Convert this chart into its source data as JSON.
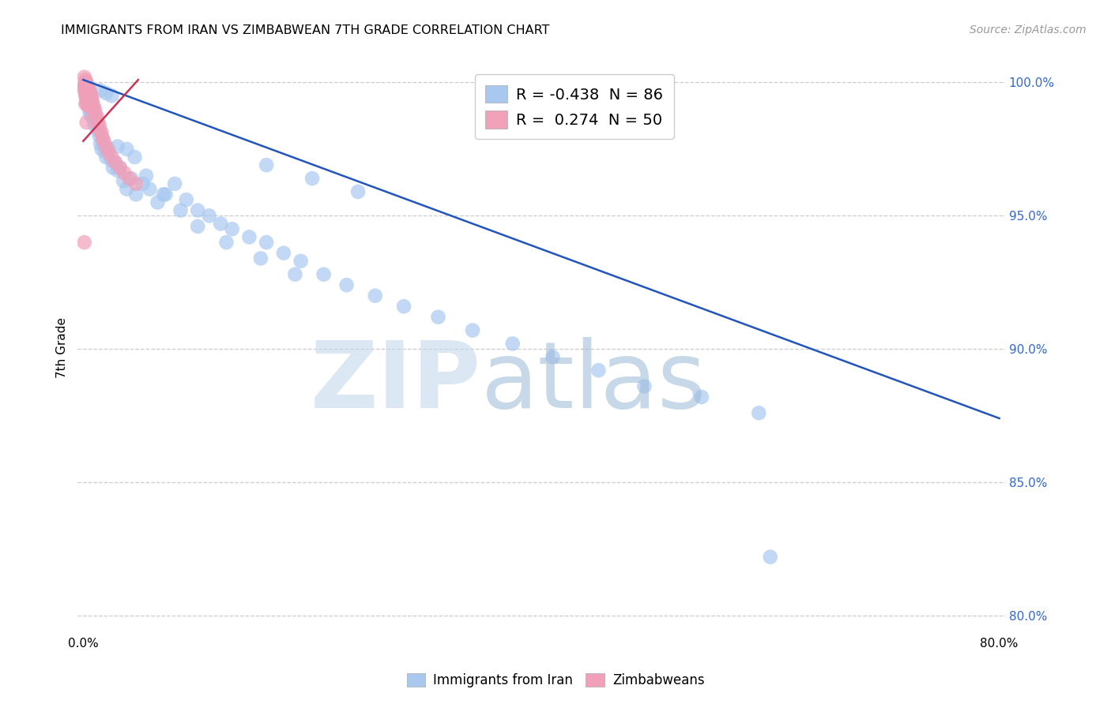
{
  "title": "IMMIGRANTS FROM IRAN VS ZIMBABWEAN 7TH GRADE CORRELATION CHART",
  "source": "Source: ZipAtlas.com",
  "ylabel": "7th Grade",
  "legend_blue_r": "-0.438",
  "legend_blue_n": "86",
  "legend_pink_r": "0.274",
  "legend_pink_n": "50",
  "legend_label_blue": "Immigrants from Iran",
  "legend_label_pink": "Zimbabweans",
  "xlim": [
    -0.005,
    0.805
  ],
  "ylim": [
    0.793,
    1.008
  ],
  "yticks": [
    0.8,
    0.85,
    0.9,
    0.95,
    1.0
  ],
  "ytick_labels": [
    "80.0%",
    "85.0%",
    "90.0%",
    "95.0%",
    "100.0%"
  ],
  "xticks": [
    0.0,
    0.1,
    0.2,
    0.3,
    0.4,
    0.5,
    0.6,
    0.7,
    0.8
  ],
  "xtick_labels": [
    "0.0%",
    "",
    "",
    "",
    "",
    "",
    "",
    "",
    "80.0%"
  ],
  "blue_color": "#a8c8f0",
  "pink_color": "#f0a0b8",
  "blue_line_color": "#2255bb",
  "pink_line_color": "#cc3355",
  "blue_trend_x": [
    0.0,
    0.8
  ],
  "blue_trend_y": [
    1.001,
    0.874
  ],
  "pink_trend_x": [
    0.0,
    0.048
  ],
  "pink_trend_y": [
    0.978,
    1.001
  ],
  "blue_scatter_x": [
    0.001,
    0.002,
    0.002,
    0.003,
    0.003,
    0.003,
    0.004,
    0.004,
    0.004,
    0.005,
    0.005,
    0.005,
    0.006,
    0.006,
    0.006,
    0.007,
    0.007,
    0.008,
    0.008,
    0.009,
    0.009,
    0.01,
    0.01,
    0.011,
    0.012,
    0.013,
    0.014,
    0.015,
    0.016,
    0.017,
    0.018,
    0.019,
    0.02,
    0.022,
    0.024,
    0.026,
    0.028,
    0.03,
    0.032,
    0.035,
    0.038,
    0.042,
    0.046,
    0.052,
    0.058,
    0.065,
    0.072,
    0.08,
    0.09,
    0.1,
    0.11,
    0.12,
    0.13,
    0.145,
    0.16,
    0.175,
    0.19,
    0.21,
    0.23,
    0.255,
    0.28,
    0.31,
    0.34,
    0.375,
    0.41,
    0.45,
    0.49,
    0.54,
    0.59,
    0.015,
    0.02,
    0.025,
    0.03,
    0.038,
    0.045,
    0.055,
    0.07,
    0.085,
    0.1,
    0.125,
    0.155,
    0.185,
    0.6,
    0.16,
    0.2,
    0.24
  ],
  "blue_scatter_y": [
    0.998,
    0.999,
    0.996,
    1.0,
    0.997,
    0.994,
    0.998,
    0.995,
    0.992,
    0.997,
    0.993,
    0.99,
    0.996,
    0.992,
    0.988,
    0.994,
    0.99,
    0.992,
    0.988,
    0.99,
    0.986,
    0.988,
    0.984,
    0.986,
    0.984,
    0.982,
    0.98,
    0.977,
    0.975,
    0.978,
    0.976,
    0.974,
    0.972,
    0.975,
    0.971,
    0.968,
    0.97,
    0.967,
    0.968,
    0.963,
    0.96,
    0.964,
    0.958,
    0.962,
    0.96,
    0.955,
    0.958,
    0.962,
    0.956,
    0.952,
    0.95,
    0.947,
    0.945,
    0.942,
    0.94,
    0.936,
    0.933,
    0.928,
    0.924,
    0.92,
    0.916,
    0.912,
    0.907,
    0.902,
    0.897,
    0.892,
    0.886,
    0.882,
    0.876,
    0.997,
    0.996,
    0.995,
    0.976,
    0.975,
    0.972,
    0.965,
    0.958,
    0.952,
    0.946,
    0.94,
    0.934,
    0.928,
    0.822,
    0.969,
    0.964,
    0.959
  ],
  "pink_scatter_x": [
    0.001,
    0.001,
    0.002,
    0.002,
    0.002,
    0.003,
    0.003,
    0.003,
    0.003,
    0.004,
    0.004,
    0.004,
    0.005,
    0.005,
    0.005,
    0.006,
    0.006,
    0.007,
    0.007,
    0.008,
    0.008,
    0.009,
    0.01,
    0.011,
    0.012,
    0.013,
    0.014,
    0.015,
    0.016,
    0.017,
    0.018,
    0.02,
    0.022,
    0.025,
    0.028,
    0.032,
    0.036,
    0.04,
    0.046,
    0.001,
    0.002,
    0.002,
    0.003,
    0.004,
    0.005,
    0.006,
    0.007,
    0.001,
    0.003,
    0.002
  ],
  "pink_scatter_y": [
    0.999,
    0.997,
    1.0,
    0.998,
    0.995,
    0.999,
    0.997,
    0.994,
    0.992,
    0.998,
    0.995,
    0.993,
    0.997,
    0.994,
    0.991,
    0.996,
    0.993,
    0.994,
    0.991,
    0.993,
    0.99,
    0.991,
    0.99,
    0.988,
    0.987,
    0.985,
    0.984,
    0.982,
    0.981,
    0.979,
    0.978,
    0.976,
    0.974,
    0.972,
    0.97,
    0.968,
    0.966,
    0.964,
    0.962,
    1.002,
    1.001,
    1.0,
    0.999,
    0.998,
    0.997,
    0.996,
    0.995,
    0.94,
    0.985,
    0.992
  ]
}
